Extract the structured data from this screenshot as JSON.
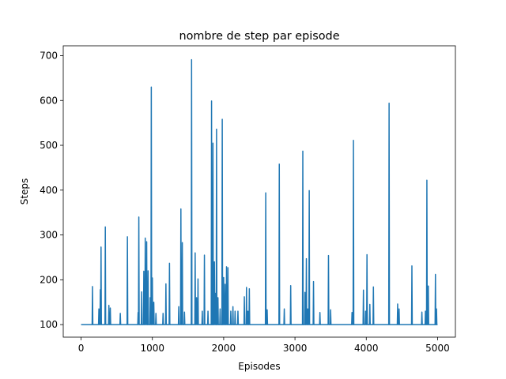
{
  "chart_data": {
    "type": "line",
    "title": "nombre de step par episode",
    "xlabel": "Episodes",
    "ylabel": "Steps",
    "xlim": [
      -250,
      5250
    ],
    "ylim": [
      72,
      722
    ],
    "xticks": [
      0,
      1000,
      2000,
      3000,
      4000,
      5000
    ],
    "yticks": [
      100,
      200,
      300,
      400,
      500,
      600,
      700
    ],
    "grid": false,
    "baseline": 100,
    "series": [
      {
        "color": "#1f77b4",
        "spikes": [
          [
            160,
            185
          ],
          [
            250,
            135
          ],
          [
            270,
            178
          ],
          [
            280,
            273
          ],
          [
            340,
            318
          ],
          [
            390,
            143
          ],
          [
            410,
            137
          ],
          [
            550,
            125
          ],
          [
            650,
            296
          ],
          [
            800,
            127
          ],
          [
            810,
            340
          ],
          [
            850,
            173
          ],
          [
            880,
            219
          ],
          [
            900,
            293
          ],
          [
            910,
            190
          ],
          [
            920,
            285
          ],
          [
            940,
            220
          ],
          [
            970,
            160
          ],
          [
            985,
            630
          ],
          [
            1000,
            204
          ],
          [
            1020,
            150
          ],
          [
            1050,
            125
          ],
          [
            1150,
            125
          ],
          [
            1190,
            191
          ],
          [
            1240,
            237
          ],
          [
            1370,
            140
          ],
          [
            1400,
            358
          ],
          [
            1420,
            283
          ],
          [
            1450,
            128
          ],
          [
            1550,
            691
          ],
          [
            1600,
            260
          ],
          [
            1620,
            160
          ],
          [
            1640,
            202
          ],
          [
            1700,
            130
          ],
          [
            1730,
            255
          ],
          [
            1780,
            130
          ],
          [
            1830,
            599
          ],
          [
            1850,
            505
          ],
          [
            1870,
            240
          ],
          [
            1880,
            170
          ],
          [
            1900,
            536
          ],
          [
            1920,
            160
          ],
          [
            1950,
            135
          ],
          [
            1980,
            558
          ],
          [
            2000,
            205
          ],
          [
            2020,
            190
          ],
          [
            2040,
            229
          ],
          [
            2060,
            227
          ],
          [
            2100,
            130
          ],
          [
            2130,
            140
          ],
          [
            2160,
            130
          ],
          [
            2200,
            130
          ],
          [
            2290,
            162
          ],
          [
            2320,
            183
          ],
          [
            2340,
            130
          ],
          [
            2360,
            180
          ],
          [
            2590,
            394
          ],
          [
            2610,
            133
          ],
          [
            2780,
            458
          ],
          [
            2850,
            135
          ],
          [
            2940,
            187
          ],
          [
            3110,
            487
          ],
          [
            3140,
            172
          ],
          [
            3160,
            247
          ],
          [
            3180,
            135
          ],
          [
            3200,
            399
          ],
          [
            3260,
            196
          ],
          [
            3350,
            127
          ],
          [
            3470,
            254
          ],
          [
            3500,
            133
          ],
          [
            3800,
            127
          ],
          [
            3820,
            511
          ],
          [
            3960,
            177
          ],
          [
            3990,
            130
          ],
          [
            4010,
            256
          ],
          [
            4050,
            145
          ],
          [
            4100,
            184
          ],
          [
            4320,
            594
          ],
          [
            4440,
            146
          ],
          [
            4460,
            135
          ],
          [
            4640,
            231
          ],
          [
            4780,
            128
          ],
          [
            4830,
            130
          ],
          [
            4850,
            422
          ],
          [
            4870,
            186
          ],
          [
            4970,
            212
          ],
          [
            4985,
            135
          ]
        ]
      }
    ]
  }
}
